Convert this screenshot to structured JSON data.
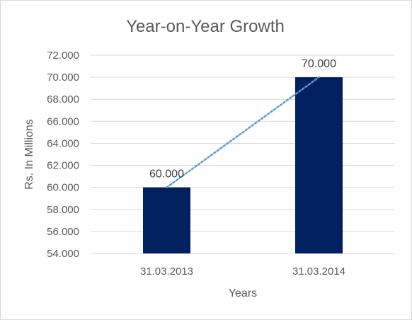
{
  "chart_data": {
    "type": "bar",
    "title": "Year-on-Year Growth",
    "xlabel": "Years",
    "ylabel": "Rs. In Millions",
    "categories": [
      "31.03.2013",
      "31.03.2014"
    ],
    "values": [
      60.0,
      70.0
    ],
    "data_labels": [
      "60.000",
      "70.000"
    ],
    "ylim": [
      54,
      72
    ],
    "yticks": [
      54,
      56,
      58,
      60,
      62,
      64,
      66,
      68,
      70,
      72
    ],
    "ytick_labels": [
      "54.000",
      "56.000",
      "58.000",
      "60.000",
      "62.000",
      "64.000",
      "66.000",
      "68.000",
      "70.000",
      "72.000"
    ],
    "grid": true,
    "trendline": {
      "type": "linear",
      "style": "dotted"
    },
    "legend": "none",
    "colors": {
      "bar": "#002060",
      "trendline": "#5b9bd5",
      "grid": "#d9d9d9",
      "text": "#595959"
    }
  }
}
